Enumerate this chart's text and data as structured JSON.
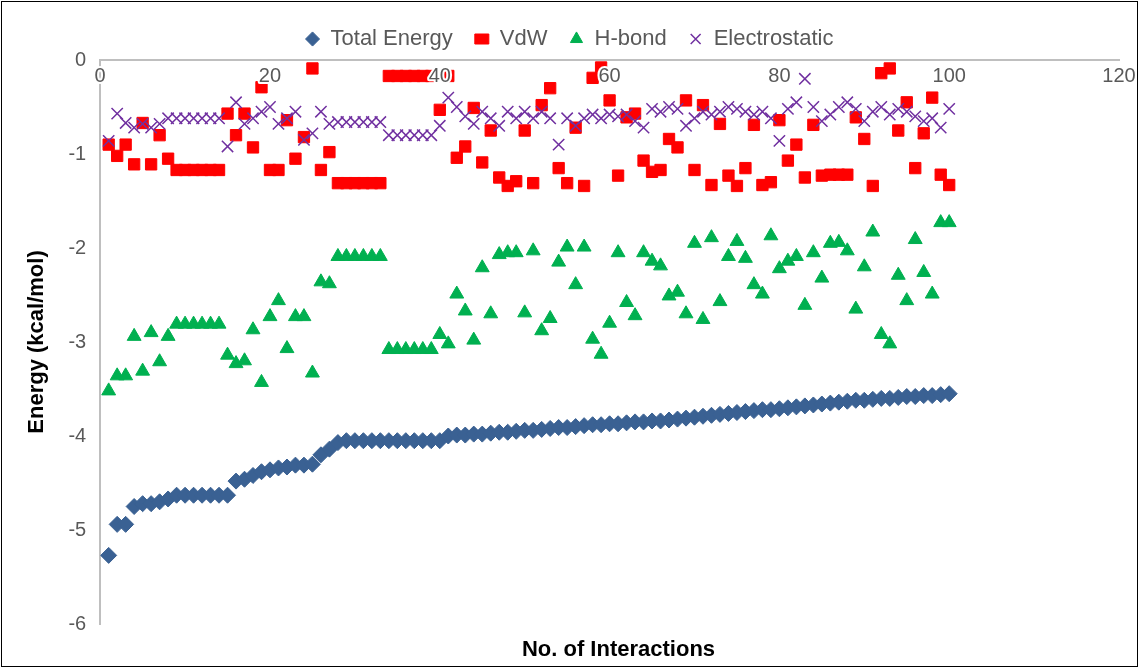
{
  "chart_data": {
    "type": "scatter",
    "xlabel": "No. of Interactions",
    "ylabel": "Energy (kcal/mol)",
    "xlim": [
      0,
      120
    ],
    "xticks": [
      0,
      20,
      40,
      60,
      80,
      100,
      120
    ],
    "ylim": [
      -6,
      0
    ],
    "yticks": [
      -6,
      -5,
      -4,
      -3,
      -2,
      -1,
      0
    ],
    "grid": false,
    "legend": "top",
    "x": [
      1,
      2,
      3,
      4,
      5,
      6,
      7,
      8,
      9,
      10,
      11,
      12,
      13,
      14,
      15,
      16,
      17,
      18,
      19,
      20,
      21,
      22,
      23,
      24,
      25,
      26,
      27,
      28,
      29,
      30,
      31,
      32,
      33,
      34,
      35,
      36,
      37,
      38,
      39,
      40,
      41,
      42,
      43,
      44,
      45,
      46,
      47,
      48,
      49,
      50,
      51,
      52,
      53,
      54,
      55,
      56,
      57,
      58,
      59,
      60,
      61,
      62,
      63,
      64,
      65,
      66,
      67,
      68,
      69,
      70,
      71,
      72,
      73,
      74,
      75,
      76,
      77,
      78,
      79,
      80,
      81,
      82,
      83,
      84,
      85,
      86,
      87,
      88,
      89,
      90,
      91,
      92,
      93,
      94,
      95,
      96,
      97,
      98,
      99,
      100
    ],
    "series": [
      {
        "name": "Total Energy",
        "color": "#3a6193",
        "marker": "diamond",
        "values": [
          -5.27,
          -4.94,
          -4.94,
          -4.75,
          -4.72,
          -4.72,
          -4.7,
          -4.67,
          -4.63,
          -4.63,
          -4.63,
          -4.63,
          -4.63,
          -4.63,
          -4.63,
          -4.48,
          -4.46,
          -4.42,
          -4.38,
          -4.36,
          -4.34,
          -4.33,
          -4.31,
          -4.31,
          -4.3,
          -4.2,
          -4.14,
          -4.07,
          -4.05,
          -4.05,
          -4.05,
          -4.05,
          -4.05,
          -4.05,
          -4.05,
          -4.05,
          -4.05,
          -4.05,
          -4.05,
          -4.05,
          -4.0,
          -3.99,
          -3.99,
          -3.98,
          -3.98,
          -3.97,
          -3.96,
          -3.96,
          -3.95,
          -3.94,
          -3.94,
          -3.93,
          -3.92,
          -3.91,
          -3.91,
          -3.9,
          -3.89,
          -3.88,
          -3.88,
          -3.87,
          -3.87,
          -3.86,
          -3.85,
          -3.85,
          -3.84,
          -3.84,
          -3.83,
          -3.82,
          -3.81,
          -3.8,
          -3.79,
          -3.78,
          -3.77,
          -3.76,
          -3.75,
          -3.74,
          -3.73,
          -3.72,
          -3.72,
          -3.71,
          -3.7,
          -3.69,
          -3.68,
          -3.67,
          -3.66,
          -3.65,
          -3.64,
          -3.63,
          -3.62,
          -3.62,
          -3.61,
          -3.6,
          -3.6,
          -3.59,
          -3.58,
          -3.58,
          -3.57,
          -3.57,
          -3.56,
          -3.55
        ]
      },
      {
        "name": "VdW",
        "color": "#ff0000",
        "marker": "square",
        "values": [
          -0.9,
          -1.02,
          -0.9,
          -1.11,
          -0.67,
          -1.11,
          -0.8,
          -1.05,
          -1.17,
          -1.17,
          -1.17,
          -1.17,
          -1.17,
          -1.17,
          -0.57,
          -0.8,
          -0.57,
          -0.93,
          -0.29,
          -1.17,
          -1.17,
          -0.64,
          -1.05,
          -0.82,
          -0.09,
          -1.17,
          -0.98,
          -1.31,
          -1.31,
          -1.31,
          -1.31,
          -1.31,
          -1.31,
          -0.17,
          -0.17,
          -0.17,
          -0.17,
          -0.17,
          -0.17,
          -0.53,
          -0.17,
          -1.04,
          -0.92,
          -0.51,
          -1.09,
          -0.75,
          -1.25,
          -1.34,
          -1.29,
          -0.75,
          -1.31,
          -0.48,
          -0.3,
          -1.15,
          -1.31,
          -0.72,
          -1.34,
          -0.19,
          -0.08,
          -0.43,
          -1.23,
          -0.61,
          -0.57,
          -1.07,
          -1.19,
          -1.17,
          -0.84,
          -0.93,
          -0.43,
          -1.17,
          -0.48,
          -1.33,
          -0.68,
          -1.23,
          -1.34,
          -1.15,
          -0.69,
          -1.33,
          -1.3,
          -0.64,
          -1.07,
          -0.9,
          -1.25,
          -0.69,
          -1.23,
          -1.22,
          -1.22,
          -1.22,
          -0.61,
          -0.84,
          -1.34,
          -0.14,
          -0.09,
          -0.75,
          -0.45,
          -1.15,
          -0.78,
          -0.4,
          -1.22,
          -1.33
        ]
      },
      {
        "name": "H-bond",
        "color": "#00b050",
        "marker": "triangle",
        "values": [
          -3.52,
          -3.36,
          -3.36,
          -2.94,
          -3.31,
          -2.9,
          -3.21,
          -2.94,
          -2.81,
          -2.81,
          -2.81,
          -2.81,
          -2.81,
          -2.81,
          -3.14,
          -3.23,
          -3.2,
          -2.87,
          -3.43,
          -2.73,
          -2.56,
          -3.07,
          -2.73,
          -2.73,
          -3.33,
          -2.36,
          -2.38,
          -2.09,
          -2.09,
          -2.09,
          -2.09,
          -2.09,
          -2.09,
          -3.08,
          -3.08,
          -3.08,
          -3.08,
          -3.08,
          -3.08,
          -2.92,
          -3.02,
          -2.49,
          -2.67,
          -2.98,
          -2.21,
          -2.7,
          -2.07,
          -2.05,
          -2.05,
          -2.69,
          -2.03,
          -2.88,
          -2.75,
          -2.15,
          -1.99,
          -2.39,
          -1.99,
          -2.97,
          -3.13,
          -2.8,
          -2.05,
          -2.58,
          -2.72,
          -2.05,
          -2.14,
          -2.19,
          -2.51,
          -2.47,
          -2.7,
          -1.95,
          -2.76,
          -1.89,
          -2.57,
          -2.09,
          -1.93,
          -2.11,
          -2.39,
          -2.49,
          -1.87,
          -2.22,
          -2.14,
          -2.09,
          -2.61,
          -2.05,
          -2.32,
          -1.95,
          -1.94,
          -2.03,
          -2.65,
          -2.2,
          -1.83,
          -2.92,
          -3.02,
          -2.29,
          -2.56,
          -1.91,
          -2.26,
          -2.49,
          -1.73,
          -1.73
        ]
      },
      {
        "name": "Electrostatic",
        "color": "#7030a0",
        "marker": "cross",
        "values": [
          -0.86,
          -0.57,
          -0.67,
          -0.72,
          -0.68,
          -0.72,
          -0.68,
          -0.62,
          -0.62,
          -0.62,
          -0.62,
          -0.62,
          -0.62,
          -0.62,
          -0.92,
          -0.45,
          -0.68,
          -0.62,
          -0.55,
          -0.5,
          -0.68,
          -0.62,
          -0.55,
          -0.85,
          -0.78,
          -0.55,
          -0.68,
          -0.66,
          -0.66,
          -0.66,
          -0.66,
          -0.66,
          -0.66,
          -0.8,
          -0.8,
          -0.8,
          -0.8,
          -0.8,
          -0.8,
          -0.7,
          -0.4,
          -0.5,
          -0.6,
          -0.68,
          -0.55,
          -0.62,
          -0.7,
          -0.55,
          -0.62,
          -0.55,
          -0.62,
          -0.55,
          -0.62,
          -0.9,
          -0.62,
          -0.7,
          -0.62,
          -0.58,
          -0.62,
          -0.58,
          -0.6,
          -0.58,
          -0.65,
          -0.72,
          -0.52,
          -0.55,
          -0.5,
          -0.52,
          -0.7,
          -0.62,
          -0.55,
          -0.58,
          -0.55,
          -0.5,
          -0.52,
          -0.55,
          -0.58,
          -0.55,
          -0.62,
          -0.86,
          -0.52,
          -0.45,
          -0.2,
          -0.5,
          -0.65,
          -0.58,
          -0.5,
          -0.45,
          -0.52,
          -0.65,
          -0.55,
          -0.5,
          -0.58,
          -0.52,
          -0.55,
          -0.6,
          -0.65,
          -0.62,
          -0.72,
          -0.52
        ]
      }
    ]
  }
}
